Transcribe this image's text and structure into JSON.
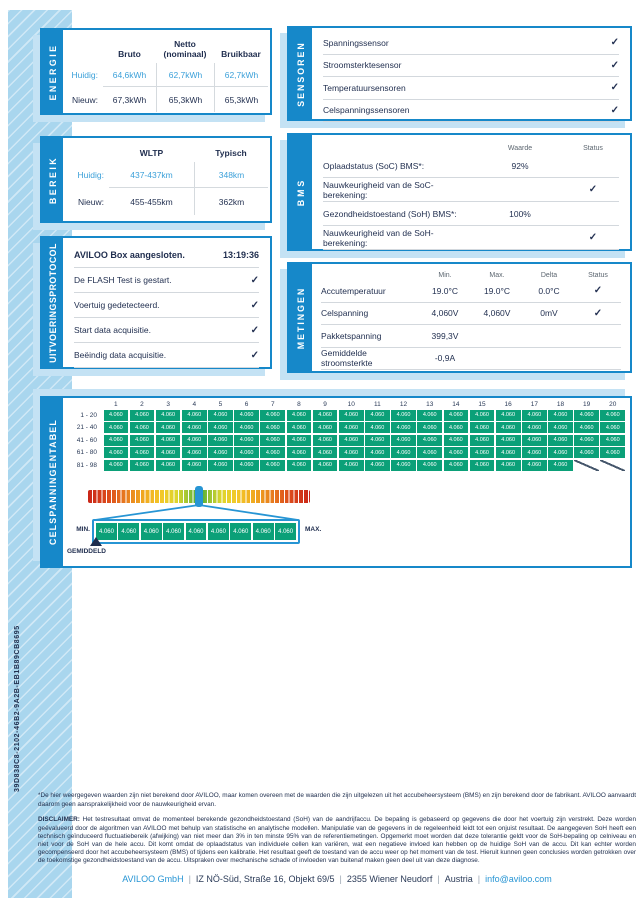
{
  "page": {
    "report_id": "39D838C8-2102-46B2-9A2B-EB1B89CB8695"
  },
  "energie": {
    "title": "ENERGIE",
    "col_headers": [
      "Bruto",
      "Netto (nominaal)",
      "Bruikbaar"
    ],
    "rows": [
      {
        "label": "Huidig:",
        "values": [
          "64,6kWh",
          "62,7kWh",
          "62,7kWh"
        ]
      },
      {
        "label": "Nieuw:",
        "values": [
          "67,3kWh",
          "65,3kWh",
          "65,3kWh"
        ]
      }
    ]
  },
  "bereik": {
    "title": "BEREIK",
    "col_headers": [
      "WLTP",
      "Typisch"
    ],
    "rows": [
      {
        "label": "Huidig:",
        "values": [
          "437-437km",
          "348km"
        ]
      },
      {
        "label": "Nieuw:",
        "values": [
          "455-455km",
          "362km"
        ]
      }
    ]
  },
  "uitvoeringsprotocol": {
    "title": "UITVOERINGSPROTOCOL",
    "items": [
      {
        "label": "AVILOO Box aangesloten.",
        "time": "13:19:36"
      },
      {
        "label": "De FLASH Test is gestart.",
        "check": true
      },
      {
        "label": "Voertuig gedetecteerd.",
        "check": true
      },
      {
        "label": "Start data acquisitie.",
        "check": true
      },
      {
        "label": "Beëindig data acquisitie.",
        "check": true
      }
    ]
  },
  "sensoren": {
    "title": "SENSOREN",
    "items": [
      {
        "label": "Spanningssensor",
        "check": true
      },
      {
        "label": "Stroomsterktesensor",
        "check": true
      },
      {
        "label": "Temperatuursensoren",
        "check": true
      },
      {
        "label": "Celspanningssensoren",
        "check": true
      }
    ]
  },
  "bms": {
    "title": "BMS",
    "col_headers": [
      "Waarde",
      "Status"
    ],
    "rows": [
      {
        "label": "Oplaadstatus (SoC) BMS*:",
        "waarde": "92%",
        "check": false
      },
      {
        "label": "Nauwkeurigheid van de SoC-berekening:",
        "waarde": "",
        "check": true
      },
      {
        "label": "Gezondheidstoestand (SoH) BMS*:",
        "waarde": "100%",
        "check": false
      },
      {
        "label": "Nauwkeurigheid van de SoH-berekening:",
        "waarde": "",
        "check": true
      }
    ]
  },
  "metingen": {
    "title": "METINGEN",
    "col_headers": [
      "Min.",
      "Max.",
      "Delta",
      "Status"
    ],
    "rows": [
      {
        "label": "Accutemperatuur",
        "min": "19.0°C",
        "max": "19.0°C",
        "delta": "0.0°C",
        "check": true
      },
      {
        "label": "Celspanning",
        "min": "4,060V",
        "max": "4,060V",
        "delta": "0mV",
        "check": true
      },
      {
        "label": "Pakketspanning",
        "min": "399,3V",
        "max": "",
        "delta": "",
        "check": false
      },
      {
        "label": "Gemiddelde stroomsterkte",
        "min": "-0,9A",
        "max": "",
        "delta": "",
        "check": false
      }
    ]
  },
  "celspanningentabel": {
    "title": "CELSPANNINGENTABEL",
    "col_headers": [
      "1",
      "2",
      "3",
      "4",
      "5",
      "6",
      "7",
      "8",
      "9",
      "10",
      "11",
      "12",
      "13",
      "14",
      "15",
      "16",
      "17",
      "18",
      "19",
      "20"
    ],
    "rows": [
      {
        "label": "1 - 20",
        "values": [
          "4.060",
          "4.060",
          "4.060",
          "4.060",
          "4.060",
          "4.060",
          "4.060",
          "4.060",
          "4.060",
          "4.060",
          "4.060",
          "4.060",
          "4.060",
          "4.060",
          "4.060",
          "4.060",
          "4.060",
          "4.060",
          "4.060",
          "4.060"
        ]
      },
      {
        "label": "21 - 40",
        "values": [
          "4.060",
          "4.060",
          "4.060",
          "4.060",
          "4.060",
          "4.060",
          "4.060",
          "4.060",
          "4.060",
          "4.060",
          "4.060",
          "4.060",
          "4.060",
          "4.060",
          "4.060",
          "4.060",
          "4.060",
          "4.060",
          "4.060",
          "4.060"
        ]
      },
      {
        "label": "41 - 60",
        "values": [
          "4.060",
          "4.060",
          "4.060",
          "4.060",
          "4.060",
          "4.060",
          "4.060",
          "4.060",
          "4.060",
          "4.060",
          "4.060",
          "4.060",
          "4.060",
          "4.060",
          "4.060",
          "4.060",
          "4.060",
          "4.060",
          "4.060",
          "4.060"
        ]
      },
      {
        "label": "61 - 80",
        "values": [
          "4.060",
          "4.060",
          "4.060",
          "4.060",
          "4.060",
          "4.060",
          "4.060",
          "4.060",
          "4.060",
          "4.060",
          "4.060",
          "4.060",
          "4.060",
          "4.060",
          "4.060",
          "4.060",
          "4.060",
          "4.060",
          "4.060",
          "4.060"
        ]
      },
      {
        "label": "81 - 98",
        "values": [
          "4.060",
          "4.060",
          "4.060",
          "4.060",
          "4.060",
          "4.060",
          "4.060",
          "4.060",
          "4.060",
          "4.060",
          "4.060",
          "4.060",
          "4.060",
          "4.060",
          "4.060",
          "4.060",
          "4.060",
          "4.060",
          null,
          null
        ]
      }
    ],
    "min_label": "MIN.",
    "max_label": "MAX.",
    "avg_label": "GEMIDDELD",
    "scale_values": [
      "4.060",
      "4.060",
      "4.060",
      "4.060",
      "4.060",
      "4.060",
      "4.060",
      "4.060",
      "4.060"
    ]
  },
  "footnote": "*De hier weergegeven waarden zijn niet berekend door AVILOO, maar komen overeen met de waarden die zijn uitgelezen uit het accubeheersysteem (BMS) en zijn berekend door de fabrikant. AVILOO aanvaardt daarom geen aansprakelijkheid voor de nauwkeurigheid ervan.",
  "disclaimer_label": "DISCLAIMER:",
  "disclaimer": "Het testresultaat omvat de momenteel berekende gezondheidstoestand (SoH) van de aandrijfaccu. De bepaling is gebaseerd op gegevens die door het voertuig zijn verstrekt. Deze worden geëvalueerd door de algoritmen van AVILOO met behulp van statistische en analytische modellen. Manipulatie van de gegevens in de regeleenheid leidt tot een onjuist resultaat. De aangegeven SoH heeft een technisch geïnduceerd fluctuatiebereik (afwijking) van niet meer dan 3% in ten minste 95% van de referentiemetingen. Opgemerkt moet worden dat deze tolerantie geldt voor de SoH-bepaling op celniveau en niet voor de SoH van de hele accu. Dit komt omdat de oplaadstatus van individuele cellen kan variëren, wat een negatieve invloed kan hebben op de huidige SoH van de accu. Dit kan echter worden gecompenseerd door het accubeheersysteem (BMS) of tijdens een kalibratie. Het resultaat geeft de toestand van de accu weer op het moment van de test. Hieruit kunnen geen conclusies worden getrokken over de toekomstige gezondheidstoestand van de accu. Uitspraken over mechanische schade of invloeden van buitenaf maken geen deel uit van deze diagnose.",
  "footer": {
    "company": "AVILOO GmbH",
    "address": "IZ NÖ-Süd, Straße 16, Objekt 69/5",
    "city": "2355 Wiener Neudorf",
    "country": "Austria",
    "email": "info@aviloo.com"
  }
}
